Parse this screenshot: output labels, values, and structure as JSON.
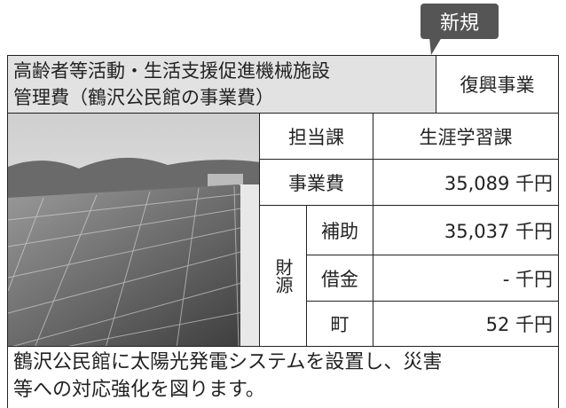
{
  "badge": "新規",
  "header": {
    "title_lines": [
      "高齢者等活動・生活支援促進機械施設",
      "管理費（鶴沢公民館の事業費）"
    ],
    "category": "復興事業"
  },
  "table": {
    "rows": [
      [
        "担当課",
        "生涯学習課"
      ],
      [
        "事業費",
        "35,089 千円"
      ]
    ],
    "funding": {
      "label": "財源",
      "rows": [
        [
          "補助",
          "35,037 千円"
        ],
        [
          "借金",
          "- 千円"
        ],
        [
          "町",
          "52 千円"
        ]
      ]
    }
  },
  "description_lines": [
    "鶴沢公民館に太陽光発電システムを設置し、災害",
    "等への対応強化を図ります。"
  ]
}
